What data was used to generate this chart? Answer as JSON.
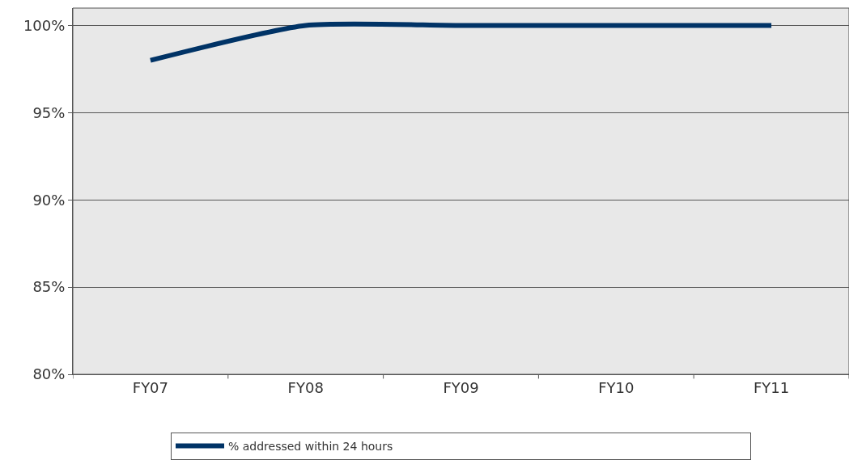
{
  "chart_data": {
    "type": "line",
    "categories": [
      "FY07",
      "FY08",
      "FY09",
      "FY10",
      "FY11"
    ],
    "series": [
      {
        "name": "% addressed within 24 hours",
        "color": "#003366",
        "values": [
          98,
          100,
          100,
          100,
          100
        ]
      }
    ],
    "ylim": [
      80,
      101
    ],
    "yticks": [
      {
        "value": 80,
        "label": "80%"
      },
      {
        "value": 85,
        "label": "85%"
      },
      {
        "value": 90,
        "label": "90%"
      },
      {
        "value": 95,
        "label": "95%"
      },
      {
        "value": 100,
        "label": "100%"
      }
    ],
    "grid": "y",
    "legend": "bottom",
    "marker": "none",
    "line_style": "solid"
  }
}
